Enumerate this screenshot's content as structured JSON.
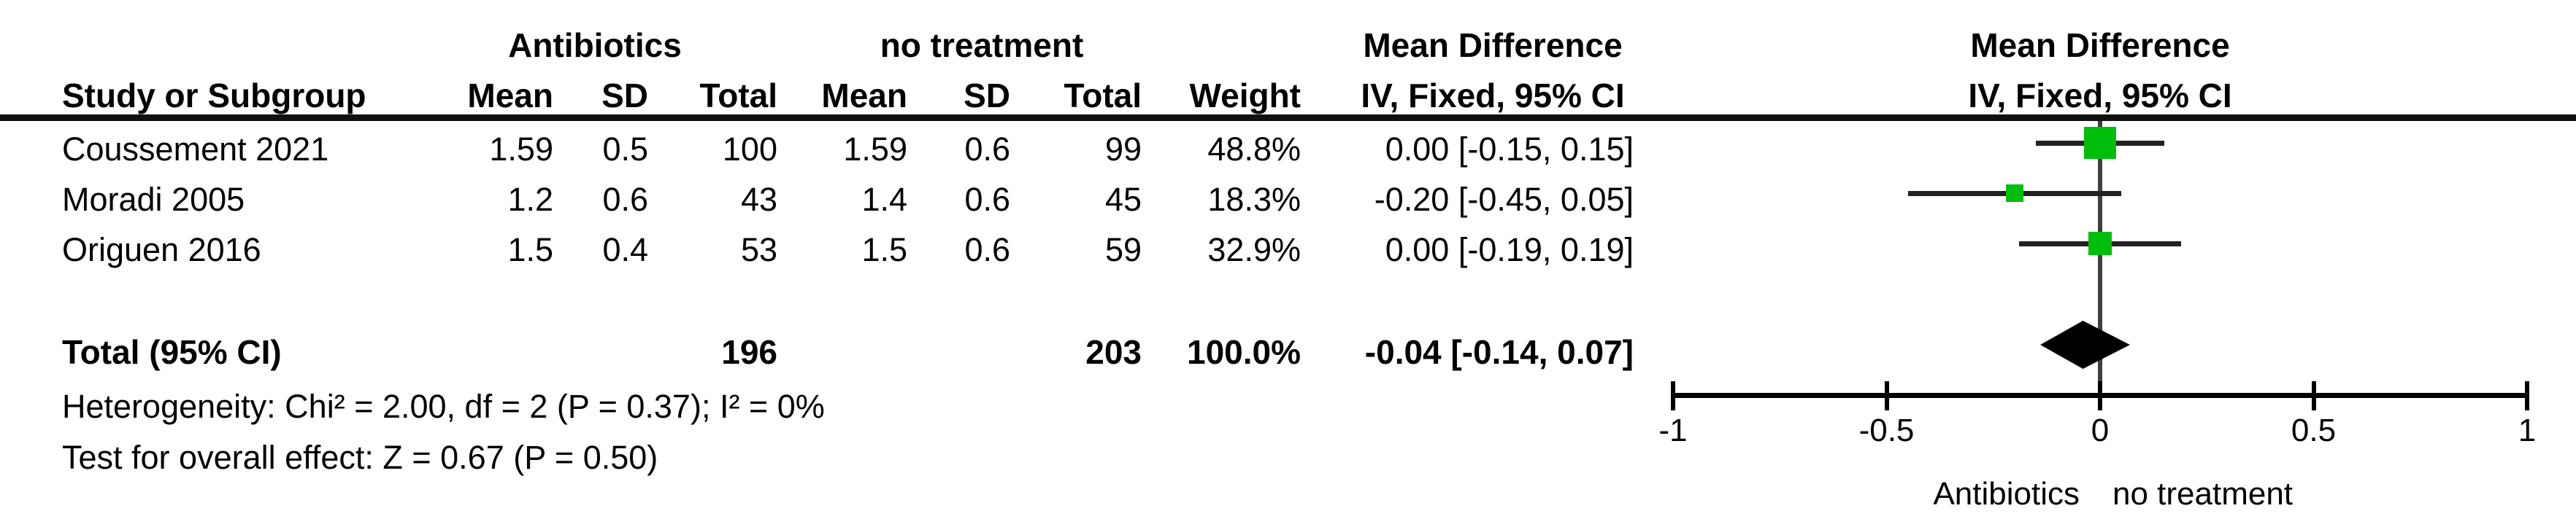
{
  "header": {
    "group1": "Antibiotics",
    "group2": "no treatment",
    "study_col": "Study or Subgroup",
    "mean": "Mean",
    "sd": "SD",
    "total": "Total",
    "weight": "Weight",
    "effect_title": "Mean Difference",
    "effect_method": "IV, Fixed, 95% CI"
  },
  "total_row": {
    "label": "Total (95% CI)",
    "n1": "196",
    "n2": "203",
    "weight": "100.0%",
    "estimate": "-0.04 [-0.14, 0.07]"
  },
  "footnotes": {
    "heterogeneity": "Heterogeneity: Chi² = 2.00, df = 2 (P = 0.37); I² = 0%",
    "overall_effect": "Test for overall effect: Z = 0.67 (P = 0.50)"
  },
  "chart_data": {
    "type": "scatter",
    "variant": "forest-plot",
    "effect_measure": "Mean Difference",
    "model": "IV, Fixed, 95% CI",
    "x_axis": {
      "min": -1,
      "max": 1,
      "tick_values": [
        -1,
        -0.5,
        0,
        0.5,
        1
      ],
      "tick_labels": [
        "-1",
        "-0.5",
        "0",
        "0.5",
        "1"
      ],
      "favours_left": "Antibiotics",
      "favours_right": "no treatment"
    },
    "marker_color": "#00BE0C",
    "diamond_color": "#000000",
    "studies": [
      {
        "name": "Coussement 2021",
        "cells": [
          "1.59",
          "0.5",
          "100",
          "1.59",
          "0.6",
          "99",
          "48.8%",
          "0.00 [-0.15, 0.15]"
        ],
        "md": 0.0,
        "ci_low": -0.15,
        "ci_high": 0.15,
        "weight_pct": 48.8
      },
      {
        "name": "Moradi 2005",
        "cells": [
          "1.2",
          "0.6",
          "43",
          "1.4",
          "0.6",
          "45",
          "18.3%",
          "-0.20 [-0.45, 0.05]"
        ],
        "md": -0.2,
        "ci_low": -0.45,
        "ci_high": 0.05,
        "weight_pct": 18.3
      },
      {
        "name": "Origuen 2016",
        "cells": [
          "1.5",
          "0.4",
          "53",
          "1.5",
          "0.6",
          "59",
          "32.9%",
          "0.00 [-0.19, 0.19]"
        ],
        "md": 0.0,
        "ci_low": -0.19,
        "ci_high": 0.19,
        "weight_pct": 32.9
      }
    ],
    "total": {
      "md": -0.04,
      "ci_low": -0.14,
      "ci_high": 0.07,
      "n1": 196,
      "n2": 203,
      "weight_pct": 100.0
    }
  }
}
